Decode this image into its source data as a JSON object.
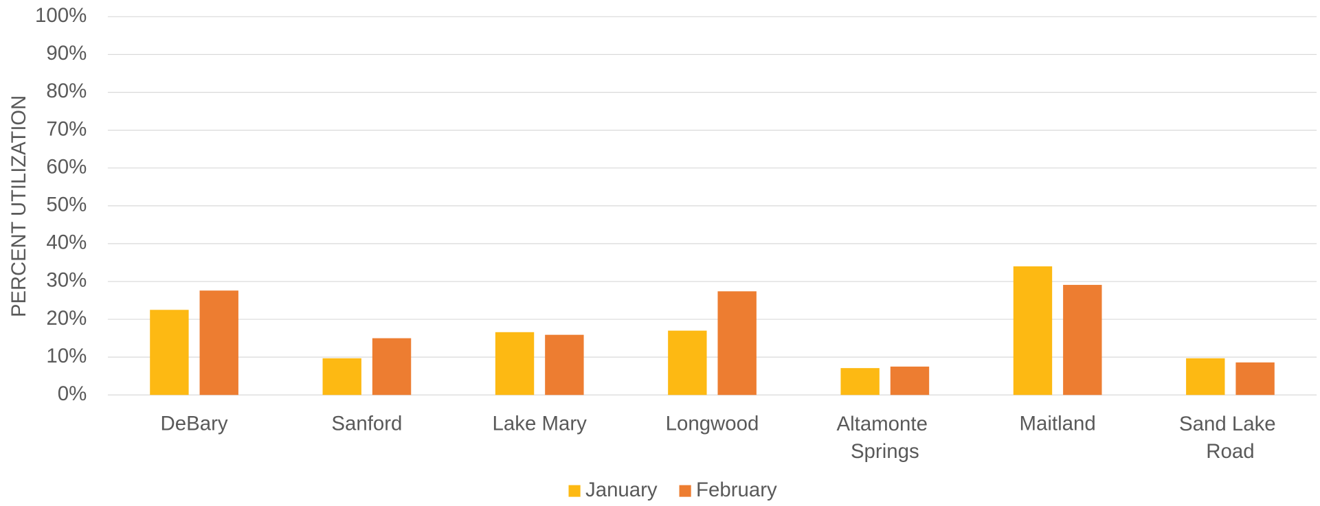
{
  "chart_data": {
    "type": "bar",
    "y_label": "PERCENT UTILIZATION",
    "categories": [
      "DeBary",
      "Sanford",
      "Lake Mary",
      "Longwood",
      "Altamonte Springs",
      "Maitland",
      "Sand Lake Road"
    ],
    "series": [
      {
        "name": "January",
        "color": "#fdb913",
        "values": [
          22.5,
          9.7,
          16.6,
          17,
          7.1,
          34,
          9.7
        ]
      },
      {
        "name": "February",
        "color": "#ed7d31",
        "values": [
          27.6,
          15,
          15.9,
          27.4,
          7.5,
          29.1,
          8.6
        ]
      }
    ],
    "ylim": [
      0,
      100
    ],
    "yticks": [
      {
        "value": 0,
        "label": "0%"
      },
      {
        "value": 10,
        "label": "10%"
      },
      {
        "value": 20,
        "label": "20%"
      },
      {
        "value": 30,
        "label": "30%"
      },
      {
        "value": 40,
        "label": "40%"
      },
      {
        "value": 50,
        "label": "50%"
      },
      {
        "value": 60,
        "label": "60%"
      },
      {
        "value": 70,
        "label": "70%"
      },
      {
        "value": 80,
        "label": "80%"
      },
      {
        "value": 90,
        "label": "90%"
      },
      {
        "value": 100,
        "label": "100%"
      }
    ],
    "grid": true,
    "legend": "bottom"
  }
}
